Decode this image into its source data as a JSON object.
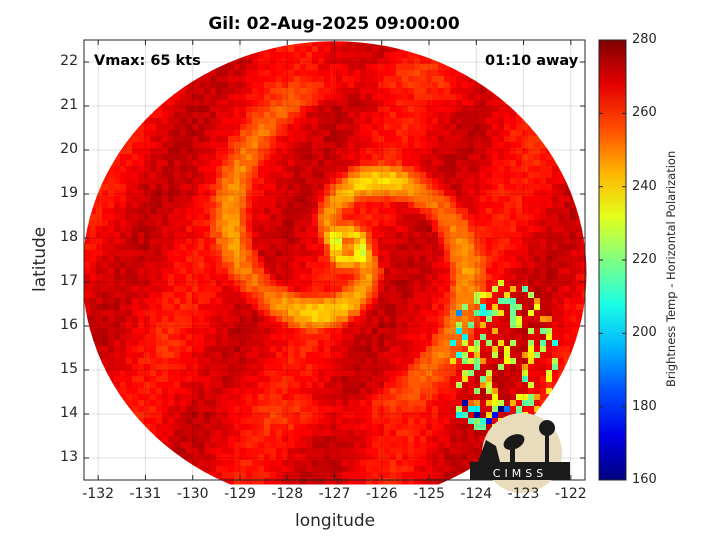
{
  "chart_data": {
    "type": "heatmap",
    "title": "Gil: 02-Aug-2025 09:00:00",
    "xlabel": "longitude",
    "ylabel": "latitude",
    "xlim": [
      -132.3,
      -121.7
    ],
    "ylim": [
      12.5,
      22.5
    ],
    "x_ticks": [
      "-132",
      "-131",
      "-130",
      "-129",
      "-128",
      "-127",
      "-126",
      "-125",
      "-124",
      "-123",
      "-122"
    ],
    "y_ticks": [
      "13",
      "14",
      "15",
      "16",
      "17",
      "18",
      "19",
      "20",
      "21",
      "22"
    ],
    "grid": true,
    "annotations": {
      "vmax": "Vmax: 65 kts",
      "time_offset": "01:10 away"
    },
    "storm_center": {
      "lon": -126.7,
      "lat": 17.8
    },
    "swath_center": {
      "lon": -127.0,
      "lat": 17.2
    },
    "colorbar": {
      "label": "Brightness Temp - Horizontal Polarization",
      "range": [
        160,
        280
      ],
      "ticks": [
        "280",
        "260",
        "240",
        "220",
        "200",
        "180",
        "160"
      ],
      "colormap": "jet"
    },
    "logo": {
      "text": "CIMSS",
      "position": "bottom-right"
    }
  }
}
